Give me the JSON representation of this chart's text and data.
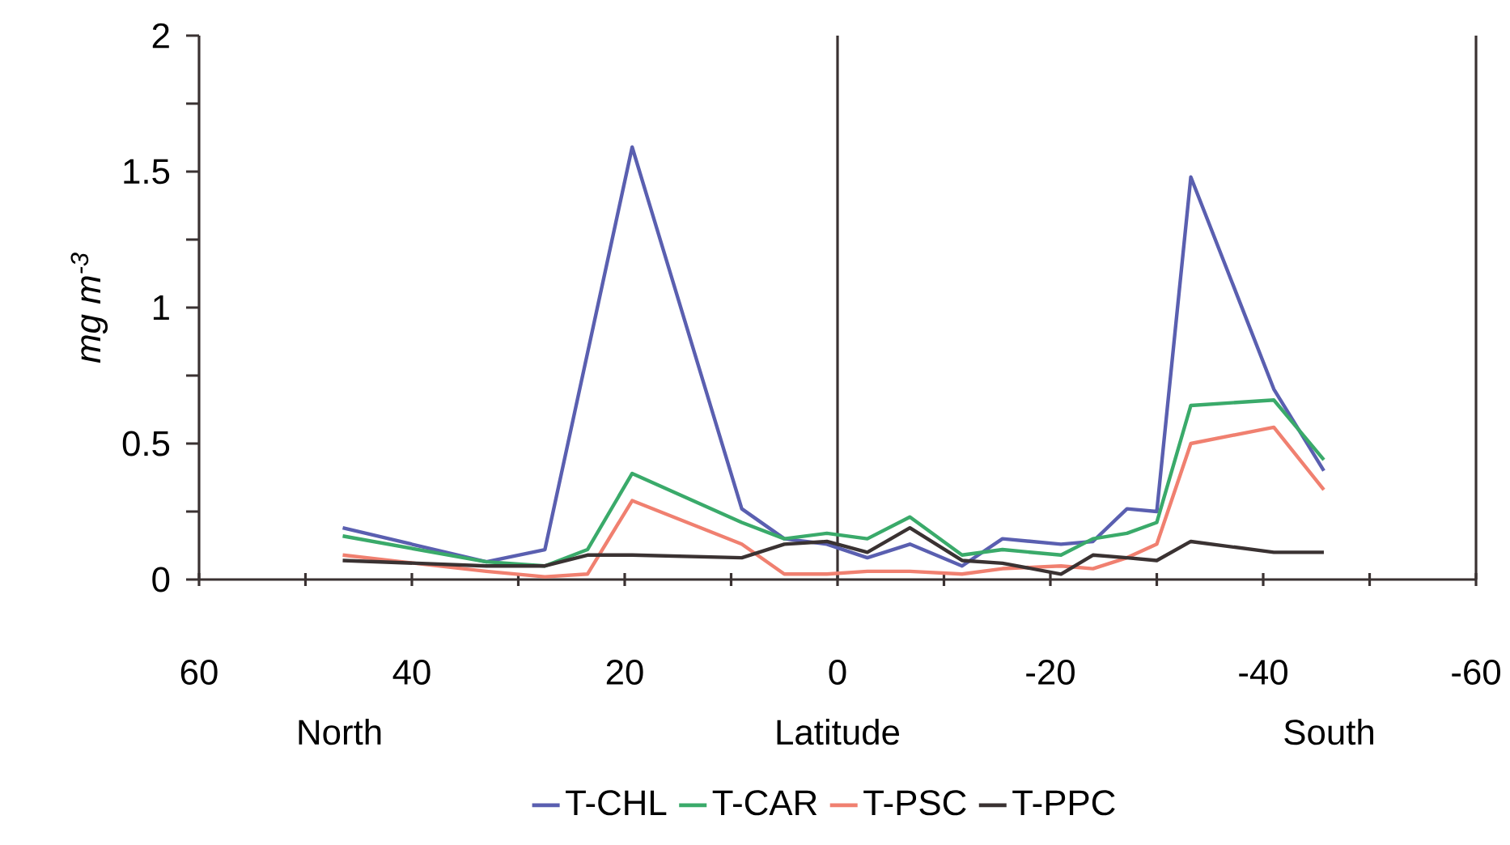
{
  "chart_data": {
    "type": "line",
    "xlabel": "Latitude",
    "ylabel": "mg m$^{-3}$",
    "annotations": [
      "North",
      "South"
    ],
    "xlim": [
      60,
      -60
    ],
    "xticks": [
      60,
      {
        "value": 50,
        "label": null
      },
      40,
      {
        "value": 30,
        "label": null
      },
      20,
      {
        "value": 10,
        "label": null
      },
      0,
      {
        "value": -10,
        "label": null
      },
      -20,
      {
        "value": -30,
        "label": null
      },
      -40,
      {
        "value": -50,
        "label": null
      },
      -60
    ],
    "ylim": [
      0,
      2
    ],
    "yticks": [
      0,
      {
        "value": 0.25,
        "label": null
      },
      0.5,
      {
        "value": 0.75,
        "label": null
      },
      1,
      {
        "value": 1.25,
        "label": null
      },
      1.5,
      {
        "value": 1.75,
        "label": null
      },
      2
    ],
    "ref_lines": [
      {
        "axis": "x",
        "value": 0,
        "color": "#3a3232"
      }
    ],
    "legend": "bottom",
    "grid": false,
    "marker": "none",
    "line_style": "solid",
    "series": [
      {
        "name": "T-CHL",
        "color": "#5a5fb0",
        "x": [
          46.5,
          33,
          27.5,
          19.3,
          9,
          5,
          1,
          -2.8,
          -6.8,
          -11.7,
          -15.5,
          -21,
          -24,
          -27.2,
          -30,
          -33.2,
          -41,
          -45.7
        ],
        "values": [
          0.19,
          0.065,
          0.11,
          1.59,
          0.26,
          0.15,
          0.13,
          0.08,
          0.13,
          0.05,
          0.15,
          0.13,
          0.14,
          0.26,
          0.25,
          1.48,
          0.7,
          0.4
        ]
      },
      {
        "name": "T-CAR",
        "color": "#3aaa6a",
        "x": [
          46.5,
          33,
          27.5,
          23.5,
          19.3,
          9,
          5,
          1,
          -2.8,
          -6.8,
          -11.7,
          -15.5,
          -21,
          -24,
          -27.2,
          -30,
          -33.2,
          -41,
          -45.7
        ],
        "values": [
          0.16,
          0.065,
          0.05,
          0.11,
          0.39,
          0.21,
          0.15,
          0.17,
          0.15,
          0.23,
          0.09,
          0.11,
          0.09,
          0.15,
          0.17,
          0.21,
          0.64,
          0.66,
          0.44
        ]
      },
      {
        "name": "T-PSC",
        "color": "#f08070",
        "x": [
          46.5,
          33,
          27.5,
          23.5,
          19.3,
          9,
          5,
          1,
          -2.8,
          -6.8,
          -11.7,
          -15.5,
          -21,
          -24,
          -27.2,
          -30,
          -33.2,
          -41,
          -45.7
        ],
        "values": [
          0.09,
          0.03,
          0.01,
          0.02,
          0.29,
          0.13,
          0.02,
          0.02,
          0.03,
          0.03,
          0.02,
          0.04,
          0.05,
          0.04,
          0.08,
          0.13,
          0.5,
          0.56,
          0.33
        ]
      },
      {
        "name": "T-PPC",
        "color": "#3a3232",
        "x": [
          46.5,
          33,
          27.5,
          23.5,
          19.3,
          9,
          5,
          1,
          -2.8,
          -6.8,
          -11.7,
          -15.5,
          -21,
          -24,
          -27.2,
          -30,
          -33.2,
          -41,
          -45.7
        ],
        "values": [
          0.07,
          0.05,
          0.05,
          0.09,
          0.09,
          0.08,
          0.13,
          0.14,
          0.1,
          0.19,
          0.07,
          0.06,
          0.02,
          0.09,
          0.08,
          0.07,
          0.14,
          0.1,
          0.1
        ]
      }
    ]
  }
}
